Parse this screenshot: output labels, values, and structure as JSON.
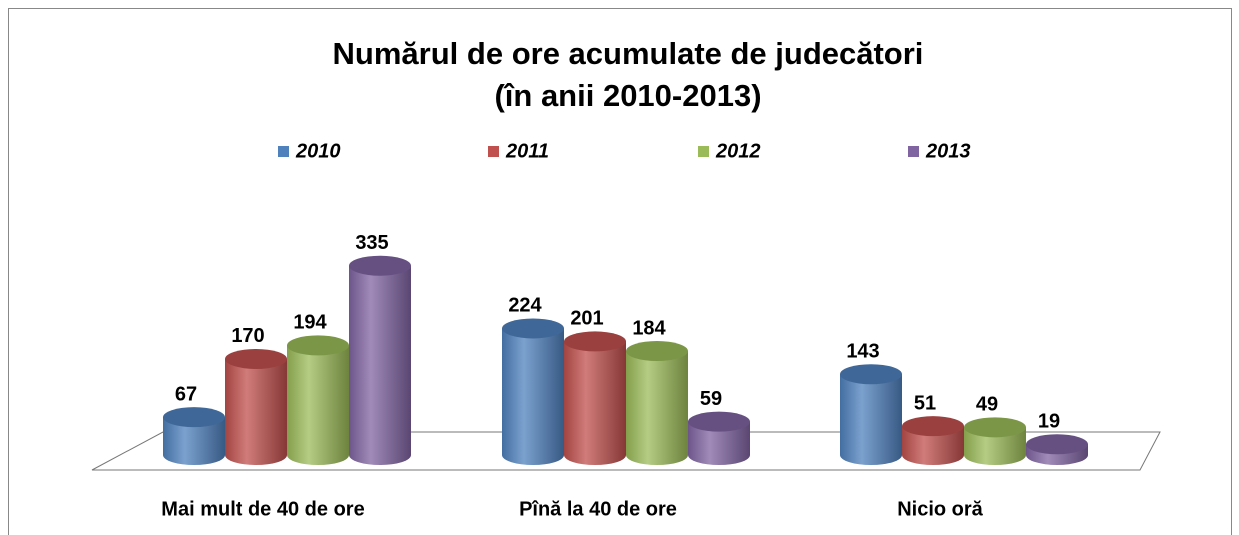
{
  "chart_data": {
    "type": "bar",
    "title": "Numărul de ore acumulate de judecători",
    "subtitle": "(în anii 2010-2013)",
    "categories": [
      "Mai mult de 40 de ore",
      "Pînă la 40 de ore",
      "Nicio oră"
    ],
    "series": [
      {
        "name": "2010",
        "color": "#4f81bd",
        "values": [
          67,
          224,
          143
        ]
      },
      {
        "name": "2011",
        "color": "#c0504d",
        "values": [
          170,
          201,
          51
        ]
      },
      {
        "name": "2012",
        "color": "#9bbb59",
        "values": [
          194,
          184,
          49
        ]
      },
      {
        "name": "2013",
        "color": "#8064a2",
        "values": [
          335,
          59,
          19
        ]
      }
    ]
  }
}
